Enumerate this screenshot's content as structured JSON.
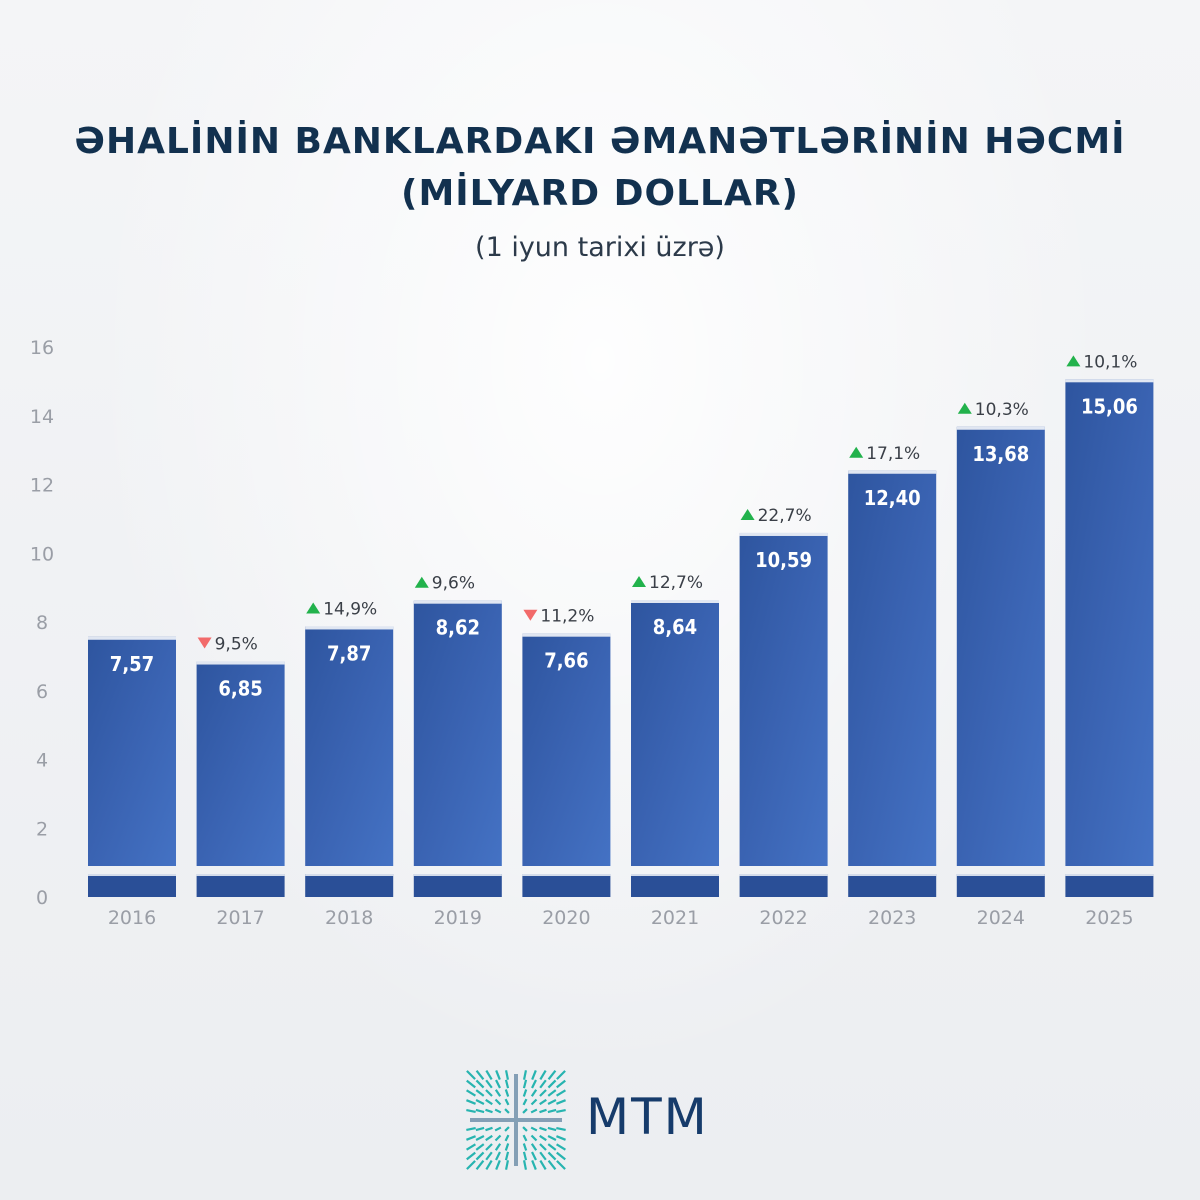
{
  "header": {
    "title_line1": "ƏHALİNİN BANKLARDAKI ƏMANƏTLƏRİNİN HƏCMİ",
    "title_line2": "(MİLYARD DOLLAR)",
    "subtitle": "(1 iyun tarixi üzrə)"
  },
  "logo": {
    "text": "MTM"
  },
  "colors": {
    "bar": "#3c65b4",
    "bar_dark": "#2a4f97",
    "up": "#22b24c",
    "down": "#f26a6a",
    "axis_text": "#9a9ea6",
    "title": "#12314f",
    "logo_accent": "#27b4b0"
  },
  "chart_data": {
    "type": "bar",
    "categories": [
      "2016",
      "2017",
      "2018",
      "2019",
      "2020",
      "2021",
      "2022",
      "2023",
      "2024",
      "2025"
    ],
    "values": [
      7.57,
      6.85,
      7.87,
      8.62,
      7.66,
      8.64,
      10.59,
      12.4,
      13.68,
      15.06
    ],
    "value_labels": [
      "7,57",
      "6,85",
      "7,87",
      "8,62",
      "7,66",
      "8,64",
      "10,59",
      "12,40",
      "13,68",
      "15,06"
    ],
    "changes": [
      null,
      {
        "dir": "down",
        "label": "9,5%"
      },
      {
        "dir": "up",
        "label": "14,9%"
      },
      {
        "dir": "up",
        "label": "9,6%"
      },
      {
        "dir": "down",
        "label": "11,2%"
      },
      {
        "dir": "up",
        "label": "12,7%"
      },
      {
        "dir": "up",
        "label": "22,7%"
      },
      {
        "dir": "up",
        "label": "17,1%"
      },
      {
        "dir": "up",
        "label": "10,3%"
      },
      {
        "dir": "up",
        "label": "10,1%"
      }
    ],
    "yticks": [
      "0",
      "2",
      "4",
      "6",
      "8",
      "10",
      "12",
      "14",
      "16"
    ],
    "ylim": [
      0,
      16
    ],
    "axis_break": true,
    "grid": false,
    "title": "ƏHALİNİN BANKLARDAKI ƏMANƏTLƏRİNİN HƏCMİ (MİLYARD DOLLAR)",
    "xlabel": "",
    "ylabel": ""
  }
}
